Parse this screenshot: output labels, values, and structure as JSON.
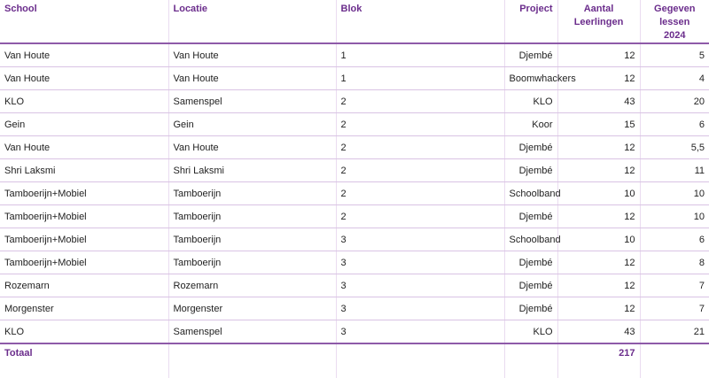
{
  "headers": {
    "school": "School",
    "locatie": "Locatie",
    "blok": "Blok",
    "project": "Project",
    "aantal_1": "Aantal",
    "aantal_2": "Leerlingen",
    "lessen_1": "Gegeven lessen",
    "lessen_2": "2024"
  },
  "rows": [
    {
      "school": "Van Houte",
      "locatie": "Van Houte",
      "blok": "1",
      "project": "Djembé",
      "aantal": "12",
      "lessen": "5"
    },
    {
      "school": "Van Houte",
      "locatie": "Van Houte",
      "blok": "1",
      "project": "Boomwhackers",
      "aantal": "12",
      "lessen": "4"
    },
    {
      "school": "KLO",
      "locatie": "Samenspel",
      "blok": "2",
      "project": "KLO",
      "aantal": "43",
      "lessen": "20"
    },
    {
      "school": "Gein",
      "locatie": "Gein",
      "blok": "2",
      "project": "Koor",
      "aantal": "15",
      "lessen": "6"
    },
    {
      "school": "Van Houte",
      "locatie": "Van Houte",
      "blok": "2",
      "project": "Djembé",
      "aantal": "12",
      "lessen": "5,5"
    },
    {
      "school": "Shri Laksmi",
      "locatie": "Shri Laksmi",
      "blok": "2",
      "project": "Djembé",
      "aantal": "12",
      "lessen": "11"
    },
    {
      "school": "Tamboerijn+Mobiel",
      "locatie": "Tamboerijn",
      "blok": "2",
      "project": "Schoolband",
      "aantal": "10",
      "lessen": "10"
    },
    {
      "school": "Tamboerijn+Mobiel",
      "locatie": "Tamboerijn",
      "blok": "2",
      "project": "Djembé",
      "aantal": "12",
      "lessen": "10"
    },
    {
      "school": "Tamboerijn+Mobiel",
      "locatie": "Tamboerijn",
      "blok": "3",
      "project": "Schoolband",
      "aantal": "10",
      "lessen": "6"
    },
    {
      "school": "Tamboerijn+Mobiel",
      "locatie": "Tamboerijn",
      "blok": "3",
      "project": "Djembé",
      "aantal": "12",
      "lessen": "8"
    },
    {
      "school": "Rozemarn",
      "locatie": "Rozemarn",
      "blok": "3",
      "project": "Djembé",
      "aantal": "12",
      "lessen": "7"
    },
    {
      "school": "Morgenster",
      "locatie": "Morgenster",
      "blok": "3",
      "project": "Djembé",
      "aantal": "12",
      "lessen": "7"
    },
    {
      "school": "KLO",
      "locatie": "Samenspel",
      "blok": "3",
      "project": "KLO",
      "aantal": "43",
      "lessen": "21"
    }
  ],
  "footer": {
    "label": "Totaal",
    "aantal_total": "217"
  }
}
